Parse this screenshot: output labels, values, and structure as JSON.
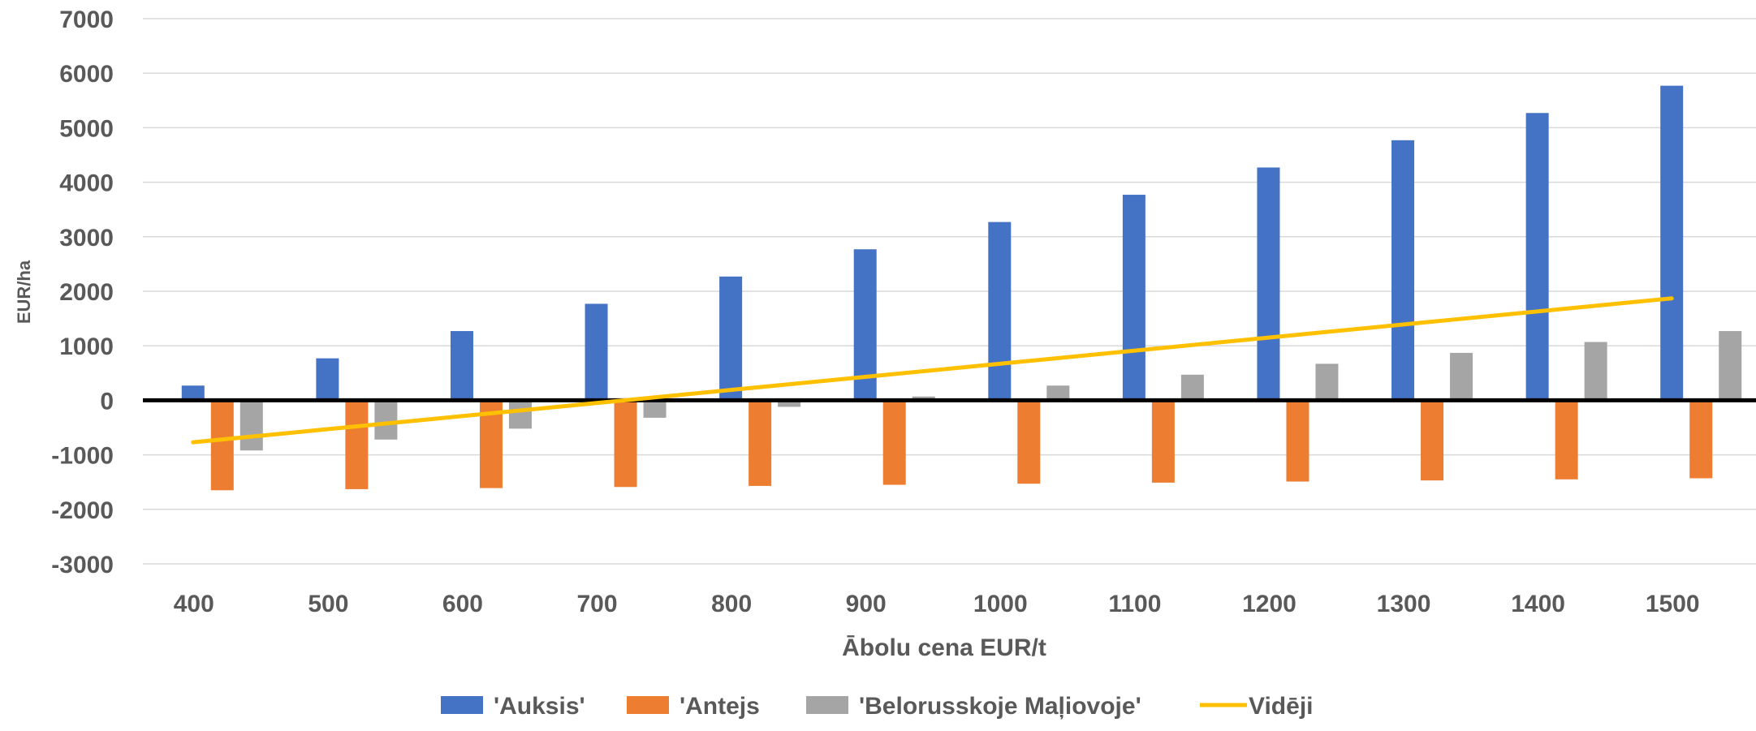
{
  "chart_data": {
    "type": "bar",
    "title": "",
    "xlabel": "Ābolu cena EUR/t",
    "ylabel": "EUR/ha",
    "ylim": [
      -3000,
      7000
    ],
    "yticks": [
      7000,
      6000,
      5000,
      4000,
      3000,
      2000,
      1000,
      0,
      -1000,
      -2000,
      -3000
    ],
    "grid": true,
    "legend_position": "bottom",
    "categories": [
      "400",
      "500",
      "600",
      "700",
      "800",
      "900",
      "1000",
      "1100",
      "1200",
      "1300",
      "1400",
      "1500"
    ],
    "series": [
      {
        "name": "'Auksis'",
        "type": "bar",
        "color": "#4472C4",
        "values": [
          270,
          770,
          1270,
          1770,
          2270,
          2770,
          3270,
          3770,
          4270,
          4770,
          5270,
          5770
        ]
      },
      {
        "name": "'Antejs",
        "type": "bar",
        "color": "#ED7D31",
        "values": [
          -1650,
          -1630,
          -1610,
          -1590,
          -1570,
          -1550,
          -1530,
          -1510,
          -1490,
          -1470,
          -1450,
          -1430
        ]
      },
      {
        "name": "'Belorusskoje Maļiovoje'",
        "type": "bar",
        "color": "#A5A5A5",
        "values": [
          -920,
          -720,
          -520,
          -320,
          -120,
          70,
          270,
          470,
          670,
          870,
          1070,
          1270
        ]
      },
      {
        "name": "Vidēji",
        "type": "line",
        "color": "#FFC000",
        "values": [
          -770,
          -530,
          -290,
          -50,
          190,
          430,
          670,
          910,
          1150,
          1390,
          1630,
          1870
        ]
      }
    ]
  }
}
